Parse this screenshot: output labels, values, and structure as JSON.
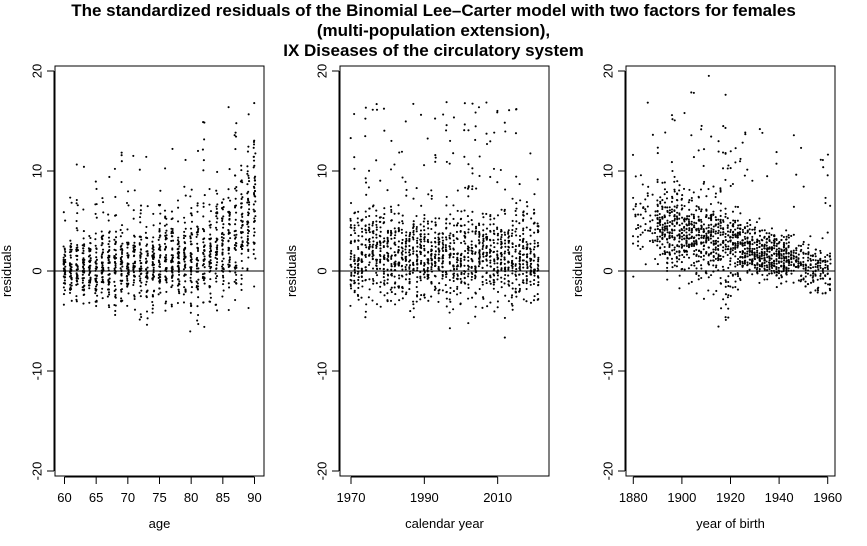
{
  "title_lines": [
    "The standardized residuals of the Binomial Lee–Carter model with two factors for females",
    "(multi-population extension),",
    "IX Diseases of the circulatory system"
  ],
  "chart_data": [
    {
      "type": "scatter",
      "xlabel": "age",
      "ylabel": "residuals",
      "xlim": [
        58.5,
        91.5
      ],
      "ylim": [
        -20.5,
        20.5
      ],
      "xticks": [
        60,
        65,
        70,
        75,
        80,
        85,
        90
      ],
      "yticks": [
        -20,
        -10,
        0,
        10,
        20
      ],
      "reference_line_y": 0,
      "pattern": "age",
      "range": [
        60,
        90
      ]
    },
    {
      "type": "scatter",
      "xlabel": "calendar year",
      "ylabel": "residuals",
      "xlim": [
        1967,
        2024
      ],
      "ylim": [
        -20.5,
        20.5
      ],
      "xticks": [
        1970,
        1990,
        2010
      ],
      "yticks": [
        -20,
        -10,
        0,
        10,
        20
      ],
      "reference_line_y": 0,
      "pattern": "year",
      "range": [
        1970,
        2021
      ]
    },
    {
      "type": "scatter",
      "xlabel": "year of birth",
      "ylabel": "residuals",
      "xlim": [
        1877,
        1963
      ],
      "ylim": [
        -20.5,
        20.5
      ],
      "xticks": [
        1880,
        1900,
        1920,
        1940,
        1960
      ],
      "yticks": [
        -20,
        -10,
        0,
        10,
        20
      ],
      "reference_line_y": 0,
      "pattern": "cohort",
      "range": [
        1880,
        1961
      ]
    }
  ]
}
